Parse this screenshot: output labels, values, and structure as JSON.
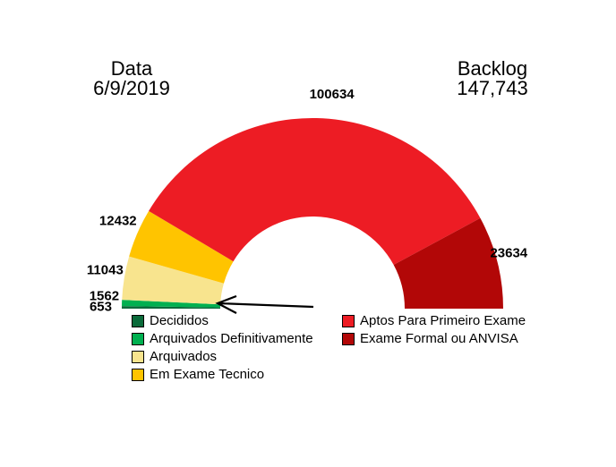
{
  "header": {
    "date_label": "Data",
    "date_value": "6/9/2019",
    "backlog_label": "Backlog",
    "backlog_value": "147,743"
  },
  "chart_data": {
    "type": "pie",
    "variant": "semicircle-donut-gauge",
    "start_angle_deg": 180,
    "end_angle_deg": 0,
    "legend_position": "bottom-two-columns",
    "segments": [
      {
        "label": "Decididos",
        "value": 653,
        "color": "#0B6B3B"
      },
      {
        "label": "Arquivados Definitivamente",
        "value": 1562,
        "color": "#00B050"
      },
      {
        "label": "Arquivados",
        "value": 11043,
        "color": "#F8E48E"
      },
      {
        "label": "Em Exame Tecnico",
        "value": 12432,
        "color": "#FFC400"
      },
      {
        "label": "Aptos Para Primeiro Exame",
        "value": 100634,
        "color": "#ED1C24"
      },
      {
        "label": "Exame Formal ou ANVISA",
        "value": 23634,
        "color": "#B20707"
      }
    ],
    "annotation": {
      "arrow_color": "#000000",
      "points_at": "Decididos / Arquivados Definitivamente slivers"
    }
  }
}
